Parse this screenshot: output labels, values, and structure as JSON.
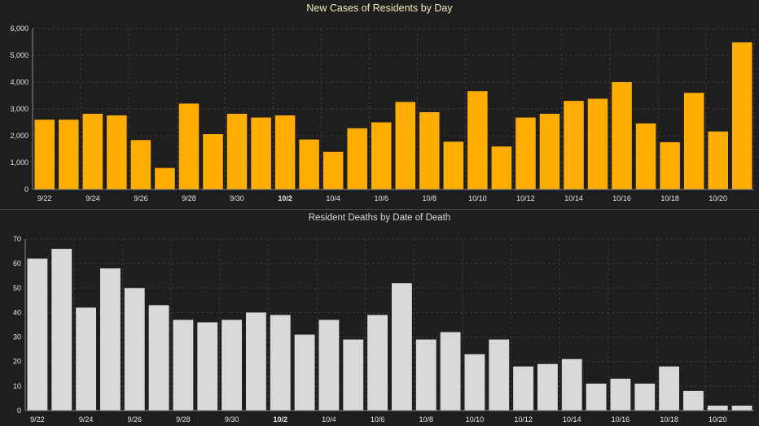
{
  "colors": {
    "background": "#1e1e1e",
    "grid": "#3a3a3a",
    "axis": "#8a8a8a",
    "text": "#e6e6e6",
    "cases_bar": "#ffad00",
    "deaths_bar": "#d9d9d9"
  },
  "chart_data": [
    {
      "type": "bar",
      "title": "New Cases of Residents by Day",
      "xlabel": "",
      "ylabel": "",
      "ylim": [
        0,
        6000
      ],
      "yticks": [
        "0",
        "1,000",
        "2,000",
        "3,000",
        "4,000",
        "5,000",
        "6,000"
      ],
      "ytick_values": [
        0,
        1000,
        2000,
        3000,
        4000,
        5000,
        6000
      ],
      "grid": true,
      "color": "#ffad00",
      "categories": [
        "9/22",
        "9/23",
        "9/24",
        "9/25",
        "9/26",
        "9/27",
        "9/28",
        "9/29",
        "9/30",
        "10/1",
        "10/2",
        "10/3",
        "10/4",
        "10/5",
        "10/6",
        "10/7",
        "10/8",
        "10/9",
        "10/10",
        "10/11",
        "10/12",
        "10/13",
        "10/14",
        "10/15",
        "10/16",
        "10/17",
        "10/18",
        "10/19",
        "10/20",
        "10/21"
      ],
      "xtick_labels": [
        "9/22",
        "9/24",
        "9/26",
        "9/28",
        "9/30",
        "10/2",
        "10/4",
        "10/6",
        "10/8",
        "10/10",
        "10/12",
        "10/14",
        "10/16",
        "10/18",
        "10/20"
      ],
      "bold_tick": "10/2",
      "values": [
        2600,
        2600,
        2820,
        2760,
        1840,
        800,
        3200,
        2060,
        2820,
        2680,
        2760,
        1860,
        1400,
        2280,
        2500,
        3260,
        2880,
        1780,
        3660,
        1600,
        2680,
        2820,
        3300,
        3380,
        4000,
        2460,
        1760,
        3600,
        2160,
        5480
      ]
    },
    {
      "type": "bar",
      "title": "Resident Deaths by Date of Death",
      "xlabel": "",
      "ylabel": "",
      "ylim": [
        0,
        70
      ],
      "yticks": [
        "0",
        "10",
        "20",
        "30",
        "40",
        "50",
        "60",
        "70"
      ],
      "ytick_values": [
        0,
        10,
        20,
        30,
        40,
        50,
        60,
        70
      ],
      "grid": true,
      "color": "#d9d9d9",
      "categories": [
        "9/22",
        "9/23",
        "9/24",
        "9/25",
        "9/26",
        "9/27",
        "9/28",
        "9/29",
        "9/30",
        "10/1",
        "10/2",
        "10/3",
        "10/4",
        "10/5",
        "10/6",
        "10/7",
        "10/8",
        "10/9",
        "10/10",
        "10/11",
        "10/12",
        "10/13",
        "10/14",
        "10/15",
        "10/16",
        "10/17",
        "10/18",
        "10/19",
        "10/20",
        "10/21"
      ],
      "xtick_labels": [
        "9/22",
        "9/24",
        "9/26",
        "9/28",
        "9/30",
        "10/2",
        "10/4",
        "10/6",
        "10/8",
        "10/10",
        "10/12",
        "10/14",
        "10/16",
        "10/18",
        "10/20"
      ],
      "bold_tick": "10/2",
      "values": [
        62,
        66,
        42,
        58,
        50,
        43,
        37,
        36,
        37,
        40,
        39,
        31,
        37,
        29,
        39,
        52,
        29,
        32,
        23,
        29,
        18,
        19,
        21,
        11,
        13,
        11,
        18,
        8,
        2,
        2
      ]
    }
  ]
}
